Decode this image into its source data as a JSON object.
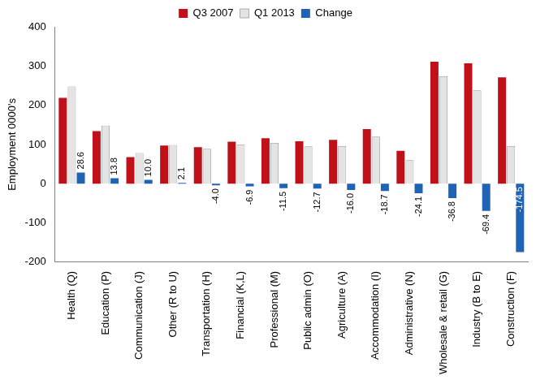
{
  "chart_data": {
    "type": "bar",
    "y_label": "Employment 0000's",
    "categories": [
      "Health (Q)",
      "Education (P)",
      "Communication (J)",
      "Other (R to U)",
      "Transportation (H)",
      "Financial (K,L)",
      "Professional (M)",
      "Public admin (O)",
      "Agriculture (A)",
      "Accommodation (I)",
      "Administrative (N)",
      "Wholesale & retail (G)",
      "Industry (B to E)",
      "Construction (F)"
    ],
    "series": [
      {
        "name": "Q3 2007",
        "color": "#c0101a",
        "values": [
          219,
          134,
          68,
          97,
          93,
          107,
          116,
          108,
          112,
          139,
          84,
          311,
          307,
          271
        ]
      },
      {
        "name": "Q1 2013",
        "color": "#e4e4e4",
        "values": [
          248,
          148,
          78,
          99,
          89,
          100,
          104,
          95,
          96,
          120,
          60,
          274,
          238,
          96
        ]
      },
      {
        "name": "Change",
        "color": "#1f63b5",
        "data_labels": true,
        "values": [
          28.6,
          13.8,
          10.0,
          2.1,
          -4.0,
          -6.9,
          -11.5,
          -12.7,
          -16.0,
          -18.7,
          -24.1,
          -36.8,
          -69.4,
          -174.5
        ],
        "value_labels": [
          "28.6",
          "13.8",
          "10.0",
          "2.1",
          "-4.0",
          "-6.9",
          "-11.5",
          "-12.7",
          "-16.0",
          "-18.7",
          "-24.1",
          "-36.8",
          "-69.4",
          "-174.5"
        ]
      }
    ],
    "ylim": [
      -200,
      400
    ],
    "yticks": [
      -200,
      -100,
      0,
      100,
      200,
      300,
      400
    ],
    "grid": false,
    "legend": "top"
  }
}
